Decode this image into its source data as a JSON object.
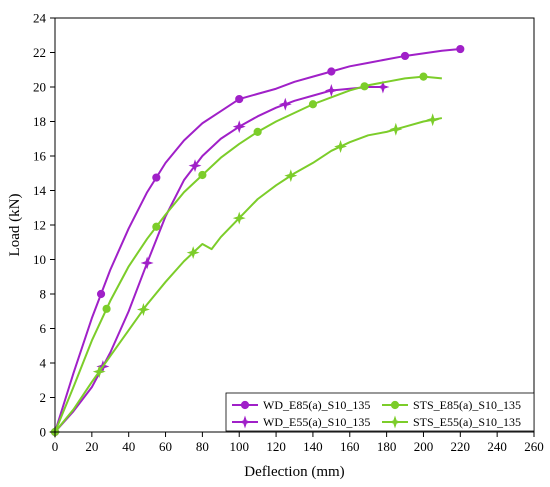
{
  "chart_data": {
    "type": "line",
    "title": "",
    "xlabel": "Deflection (mm)",
    "ylabel": "Load (kN)",
    "xlim": [
      0,
      260
    ],
    "ylim": [
      0,
      24
    ],
    "xticks": [
      "0",
      "20",
      "40",
      "60",
      "80",
      "100",
      "120",
      "140",
      "160",
      "180",
      "200",
      "220",
      "240",
      "260"
    ],
    "yticks": [
      "0",
      "2",
      "4",
      "6",
      "8",
      "10",
      "12",
      "14",
      "16",
      "18",
      "20",
      "22",
      "24"
    ],
    "grid": false,
    "legend_position": "bottom-right",
    "series": [
      {
        "name": "WD_E85(a)_S10_135",
        "color": "#a020c8",
        "marker": "circle",
        "x": [
          0,
          10,
          20,
          30,
          40,
          50,
          60,
          70,
          80,
          90,
          100,
          110,
          120,
          130,
          140,
          150,
          160,
          170,
          180,
          190,
          200,
          210,
          220
        ],
        "y": [
          0,
          3.4,
          6.6,
          9.4,
          11.8,
          13.9,
          15.6,
          16.9,
          17.9,
          18.6,
          19.3,
          19.6,
          19.9,
          20.3,
          20.6,
          20.9,
          21.2,
          21.4,
          21.6,
          21.8,
          21.95,
          22.1,
          22.2
        ],
        "markers_x": [
          0,
          25,
          55,
          100,
          150,
          190,
          220
        ]
      },
      {
        "name": "WD_E55(a)_S10_135",
        "color": "#a020c8",
        "marker": "star",
        "x": [
          0,
          10,
          20,
          30,
          40,
          50,
          60,
          70,
          80,
          90,
          100,
          110,
          120,
          130,
          140,
          150,
          160,
          170,
          180
        ],
        "y": [
          0,
          1.2,
          2.6,
          4.6,
          7.0,
          9.8,
          12.5,
          14.6,
          16.0,
          17.0,
          17.7,
          18.3,
          18.8,
          19.2,
          19.5,
          19.8,
          19.9,
          20.0,
          20.0
        ],
        "markers_x": [
          0,
          26,
          50,
          76,
          100,
          125,
          150,
          178
        ]
      },
      {
        "name": "STS_E85(a)_S10_135",
        "color": "#7ccd2a",
        "marker": "circle",
        "x": [
          0,
          10,
          20,
          30,
          40,
          50,
          60,
          70,
          80,
          90,
          100,
          110,
          120,
          130,
          140,
          150,
          160,
          170,
          180,
          190,
          200,
          210
        ],
        "y": [
          0,
          2.6,
          5.3,
          7.6,
          9.6,
          11.2,
          12.6,
          13.9,
          14.9,
          15.9,
          16.7,
          17.4,
          18.0,
          18.5,
          19.0,
          19.4,
          19.8,
          20.1,
          20.3,
          20.5,
          20.6,
          20.5
        ],
        "markers_x": [
          0,
          28,
          55,
          80,
          110,
          140,
          168,
          200
        ]
      },
      {
        "name": "STS_E55(a)_S10_135",
        "color": "#7ccd2a",
        "marker": "star",
        "x": [
          0,
          10,
          20,
          30,
          40,
          50,
          60,
          70,
          80,
          85,
          90,
          100,
          110,
          120,
          130,
          140,
          150,
          160,
          170,
          180,
          190,
          200,
          210
        ],
        "y": [
          0,
          1.3,
          2.9,
          4.4,
          5.9,
          7.4,
          8.7,
          9.9,
          10.9,
          10.6,
          11.3,
          12.4,
          13.5,
          14.3,
          15.0,
          15.6,
          16.3,
          16.8,
          17.2,
          17.4,
          17.7,
          18.0,
          18.2
        ],
        "markers_x": [
          0,
          24,
          48,
          75,
          100,
          128,
          155,
          185,
          205
        ]
      }
    ]
  }
}
